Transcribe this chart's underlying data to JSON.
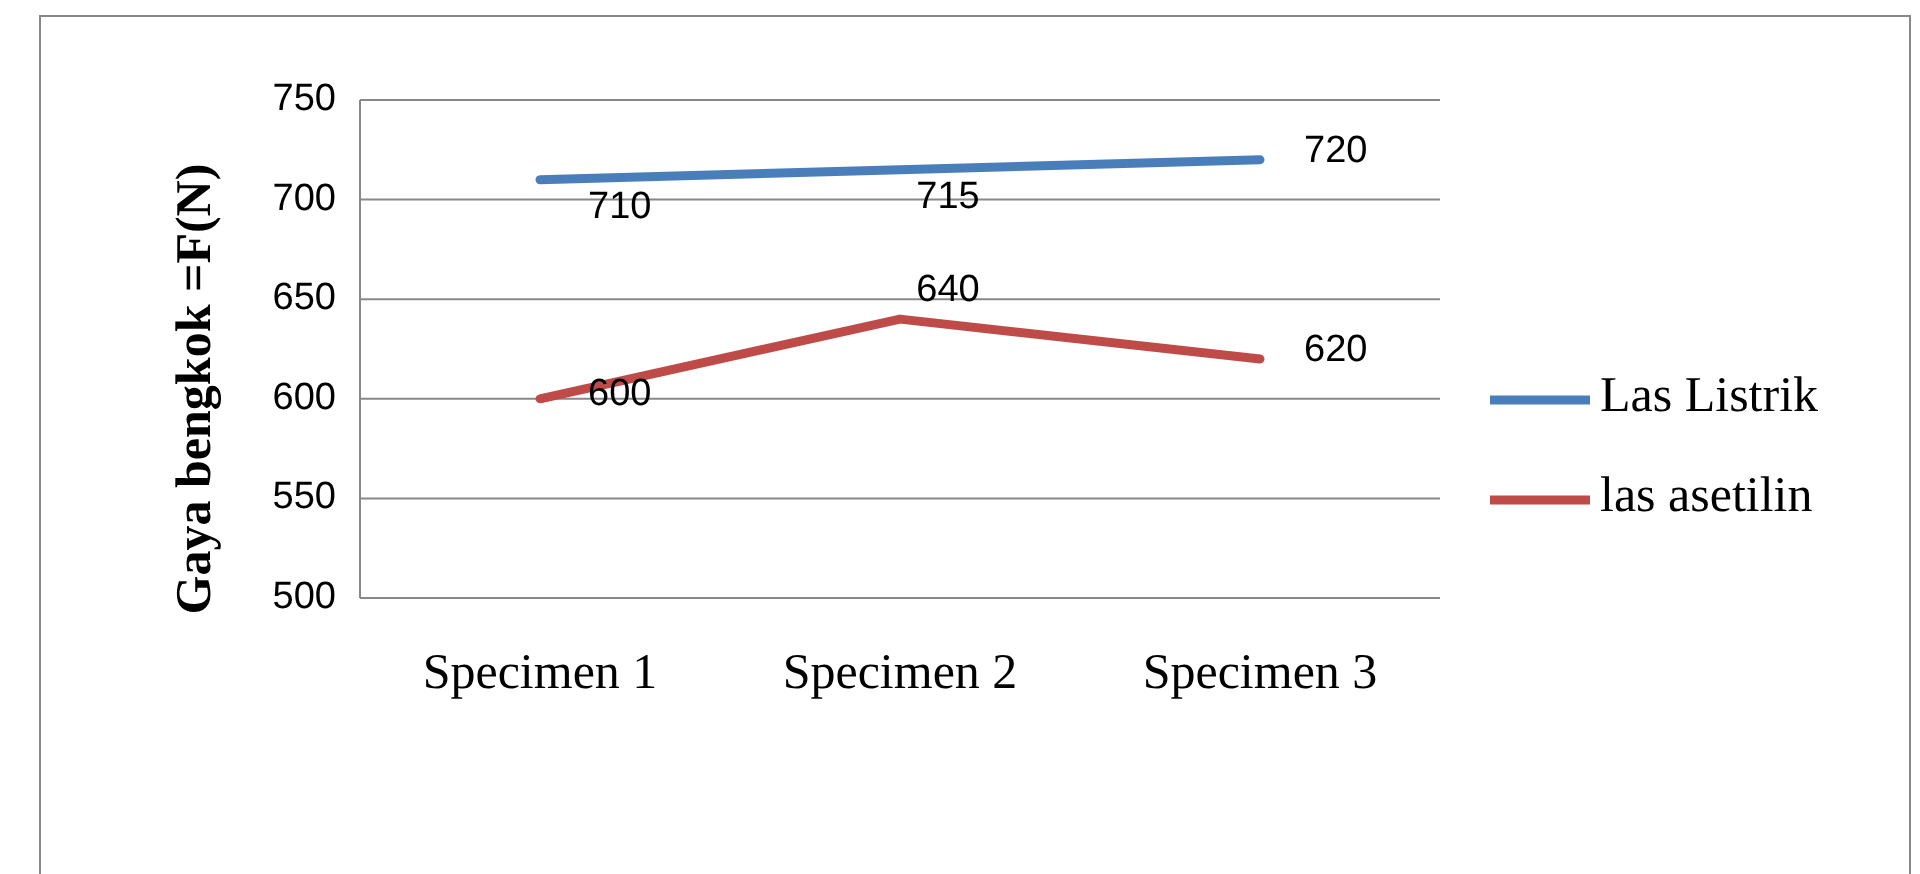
{
  "chart_data": {
    "type": "line",
    "ylabel": "Gaya bengkok =F(N)",
    "categories": [
      "Specimen 1",
      "Specimen 2",
      "Specimen 3"
    ],
    "series": [
      {
        "name": "Las Listrik",
        "color": "#4a7ebb",
        "values": [
          710,
          715,
          720
        ]
      },
      {
        "name": "las asetilin",
        "color": "#be4b48",
        "values": [
          600,
          640,
          620
        ]
      }
    ],
    "ylim": [
      500,
      750
    ],
    "yticks": [
      500,
      550,
      600,
      650,
      700,
      750
    ],
    "grid": "y",
    "legend": "right",
    "data_labels": true,
    "marker": "none",
    "line_style": "solid"
  }
}
